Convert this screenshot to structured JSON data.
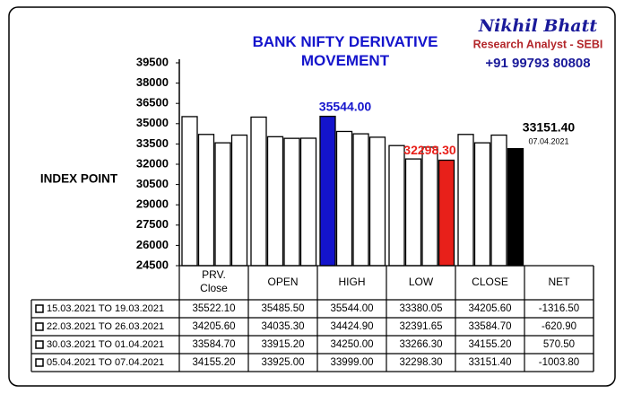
{
  "header": {
    "name": "Nikhil Bhatt",
    "role": "Research Analyst - SEBI",
    "phone": "+91 99793 80808"
  },
  "chart_data": {
    "type": "bar",
    "title": "BANK NIFTY DERIVATIVE MOVEMENT",
    "y_label": "INDEX POINT",
    "categories": [
      "PRV. Close",
      "OPEN",
      "HIGH",
      "LOW",
      "CLOSE"
    ],
    "net_header": "NET",
    "ylim": [
      24500,
      39500
    ],
    "yticks": [
      24500,
      26000,
      27500,
      29000,
      30500,
      32000,
      33500,
      35000,
      36500,
      38000,
      39500
    ],
    "series": [
      {
        "name": "15.03.2021 TO 19.03.2021",
        "color": "#ffffff",
        "values": [
          35522.1,
          35485.5,
          35544,
          33380.05,
          34205.6
        ],
        "value_labels": [
          "35522.10",
          "35485.50",
          "35544.00",
          "33380.05",
          "34205.60"
        ],
        "net": -1316.5,
        "net_label": "-1316.50"
      },
      {
        "name": "22.03.2021 TO 26.03.2021",
        "color": "#ffffff",
        "values": [
          34205.6,
          34035.3,
          34424.9,
          32391.65,
          33584.7
        ],
        "value_labels": [
          "34205.60",
          "34035.30",
          "34424.90",
          "32391.65",
          "33584.70"
        ],
        "net": -620.9,
        "net_label": "-620.90"
      },
      {
        "name": "30.03.2021 TO 01.04.2021",
        "color": "#ffffff",
        "values": [
          33584.7,
          33915.2,
          34250,
          33266.3,
          34155.2
        ],
        "value_labels": [
          "33584.70",
          "33915.20",
          "34250.00",
          "33266.30",
          "34155.20"
        ],
        "net": 570.5,
        "net_label": "570.50"
      },
      {
        "name": "05.04.2021 TO 07.04.2021",
        "color": "#ffffff",
        "values": [
          34155.2,
          33925,
          33999,
          32298.3,
          33151.4
        ],
        "value_labels": [
          "34155.20",
          "33925.00",
          "33999.00",
          "32298.30",
          "33151.40"
        ],
        "net": -1003.8,
        "net_label": "-1003.80"
      }
    ],
    "highlights": [
      {
        "series": 0,
        "category": 2,
        "color": "#1414cc"
      },
      {
        "series": 3,
        "category": 3,
        "color": "#e8201a"
      },
      {
        "series": 3,
        "category": 4,
        "color": "#000000",
        "note": "07.04.2021"
      }
    ]
  }
}
